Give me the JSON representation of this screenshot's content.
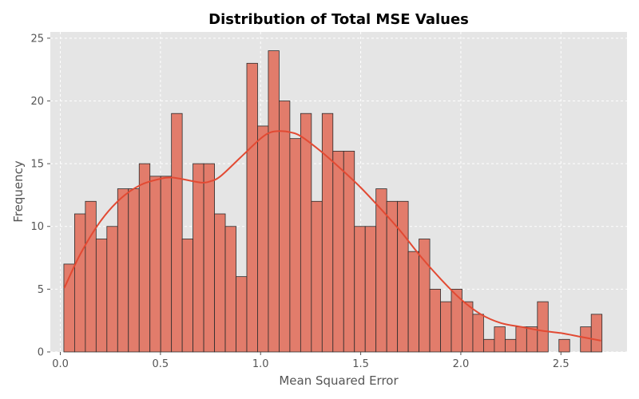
{
  "chart_data": {
    "type": "bar",
    "subtype": "histogram-with-kde",
    "title": "Distribution of Total MSE Values",
    "xlabel": "Mean Squared Error",
    "ylabel": "Frequency",
    "xlim": [
      -0.05,
      2.83
    ],
    "ylim": [
      0,
      25.5
    ],
    "xticks": [
      0.0,
      0.5,
      1.0,
      1.5,
      2.0,
      2.5
    ],
    "xtick_labels": [
      "0.0",
      "0.5",
      "1.0",
      "1.5",
      "2.0",
      "2.5"
    ],
    "yticks": [
      0,
      5,
      10,
      15,
      20,
      25
    ],
    "ytick_labels": [
      "0",
      "5",
      "10",
      "15",
      "20",
      "25"
    ],
    "grid": true,
    "bin_start": 0.0175,
    "bin_width": 0.05375,
    "counts": [
      7,
      11,
      12,
      9,
      10,
      13,
      13,
      15,
      14,
      14,
      19,
      9,
      15,
      15,
      11,
      10,
      6,
      23,
      18,
      24,
      20,
      17,
      19,
      12,
      19,
      16,
      16,
      10,
      10,
      13,
      12,
      12,
      8,
      9,
      5,
      4,
      5,
      4,
      3,
      1,
      2,
      1,
      2,
      2,
      4,
      0,
      1,
      0,
      2,
      3
    ],
    "kde": {
      "x": [
        0.02,
        0.1,
        0.2,
        0.3,
        0.4,
        0.5,
        0.55,
        0.6,
        0.7,
        0.75,
        0.8,
        0.9,
        1.0,
        1.05,
        1.1,
        1.15,
        1.2,
        1.3,
        1.4,
        1.5,
        1.6,
        1.7,
        1.8,
        1.9,
        2.0,
        2.1,
        2.2,
        2.3,
        2.4,
        2.5,
        2.6,
        2.7
      ],
      "y": [
        5.1,
        7.8,
        10.4,
        12.2,
        13.3,
        13.8,
        13.9,
        13.8,
        13.5,
        13.6,
        14.0,
        15.5,
        17.0,
        17.5,
        17.6,
        17.5,
        17.2,
        16.0,
        14.6,
        13.1,
        11.4,
        9.6,
        7.6,
        5.8,
        4.2,
        3.0,
        2.3,
        2.0,
        1.7,
        1.5,
        1.2,
        0.9
      ]
    },
    "colors": {
      "bar_fill": "#e27c6b",
      "bar_edge": "#2b2b2b",
      "kde_line": "#e24a33",
      "plot_background": "#e5e5e5",
      "grid": "#ffffff"
    }
  }
}
